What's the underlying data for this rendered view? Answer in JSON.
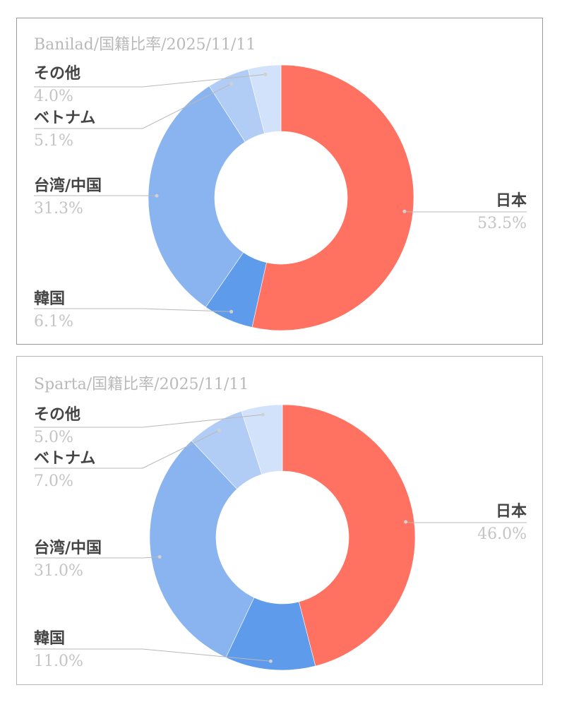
{
  "chart_data": [
    {
      "type": "pie",
      "donut": true,
      "title": "Banilad/国籍比率/2025/11/11",
      "slices": [
        {
          "label": "日本",
          "value": 53.5,
          "value_label": "53.5%",
          "color": "#ff7262"
        },
        {
          "label": "韓国",
          "value": 6.1,
          "value_label": "6.1%",
          "color": "#5f9beb"
        },
        {
          "label": "台湾/中国",
          "value": 31.3,
          "value_label": "31.3%",
          "color": "#8ab4ef"
        },
        {
          "label": "ベトナム",
          "value": 5.1,
          "value_label": "5.1%",
          "color": "#b2cdf5"
        },
        {
          "label": "その他",
          "value": 4.0,
          "value_label": "4.0%",
          "color": "#d2e2fa"
        }
      ]
    },
    {
      "type": "pie",
      "donut": true,
      "title": "Sparta/国籍比率/2025/11/11",
      "slices": [
        {
          "label": "日本",
          "value": 46.0,
          "value_label": "46.0%",
          "color": "#ff7262"
        },
        {
          "label": "韓国",
          "value": 11.0,
          "value_label": "11.0%",
          "color": "#5f9beb"
        },
        {
          "label": "台湾/中国",
          "value": 31.0,
          "value_label": "31.0%",
          "color": "#8ab4ef"
        },
        {
          "label": "ベトナム",
          "value": 7.0,
          "value_label": "7.0%",
          "color": "#b2cdf5"
        },
        {
          "label": "その他",
          "value": 5.0,
          "value_label": "5.0%",
          "color": "#d2e2fa"
        }
      ]
    }
  ]
}
